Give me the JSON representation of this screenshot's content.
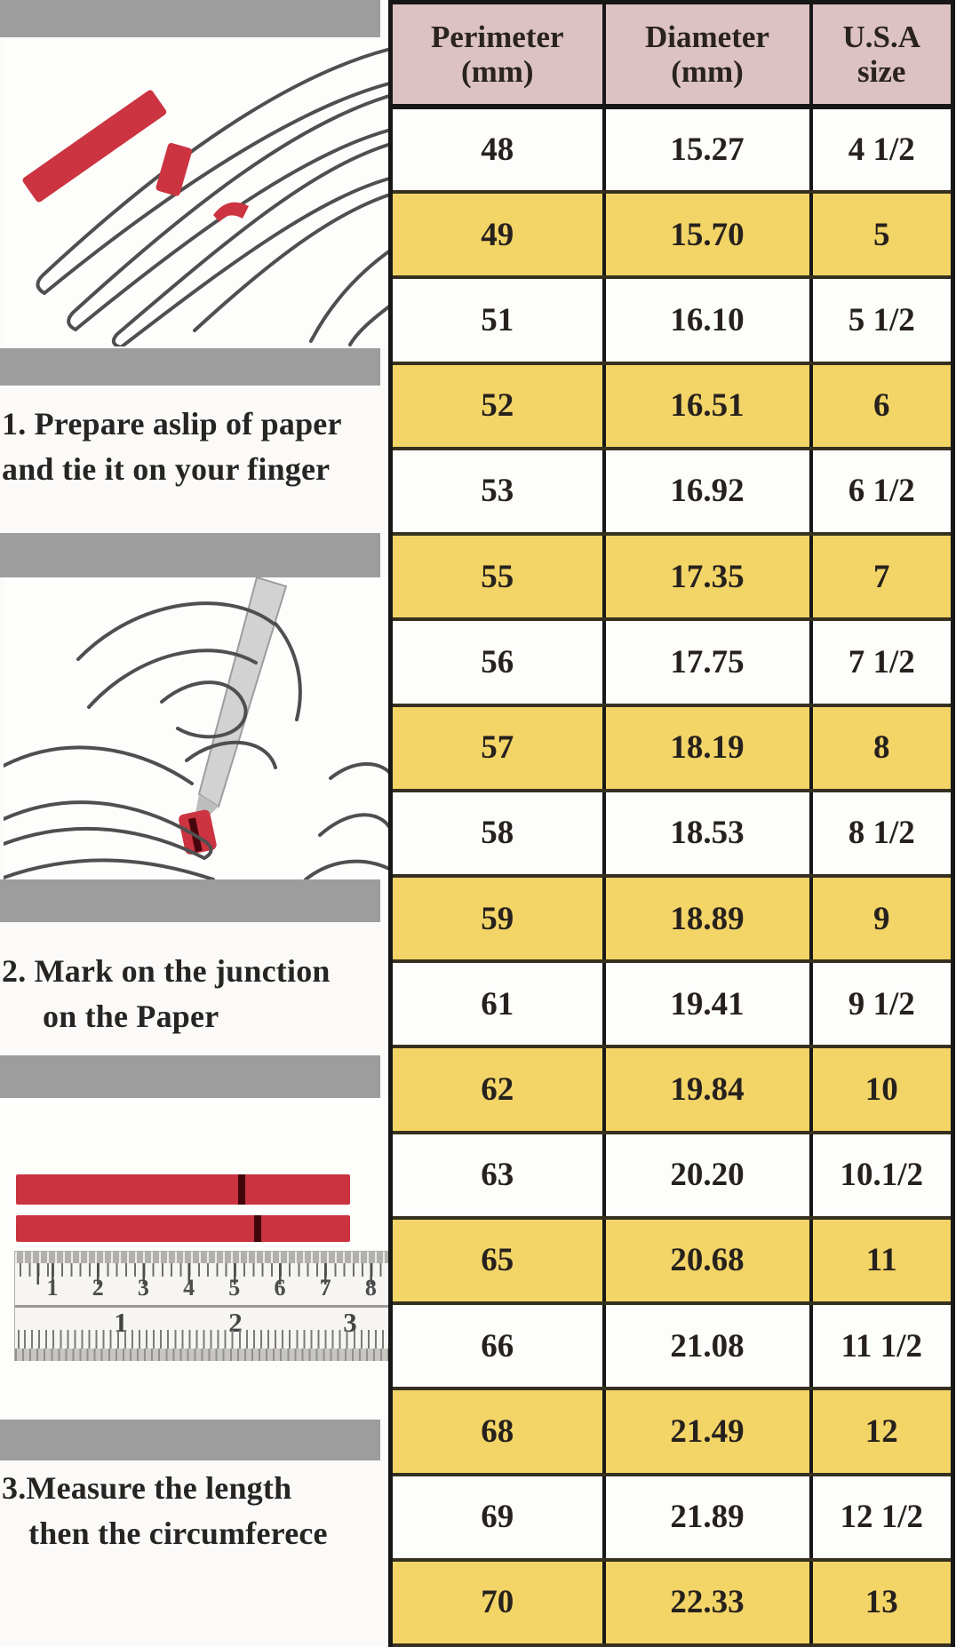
{
  "colors": {
    "header_bg": "#dcc2c3",
    "row_yellow": "#f3d467",
    "row_white": "#fdfdfc",
    "strip_red": "#cb3340",
    "strip_mark_dark": "#42050b",
    "separator_gray": "#9d9d9d",
    "table_border": "#171717"
  },
  "left_panel": {
    "illustrations": {
      "step1": "hand-with-red-paper-strip",
      "step2": "hands-marking-paper-on-finger",
      "step3": "red-strips-and-ruler"
    },
    "steps": [
      {
        "line1": "1.  Prepare aslip of paper",
        "line2": "and tie it on your finger"
      },
      {
        "line1": "2. Mark on the junction",
        "line2": "on the Paper"
      },
      {
        "line1": "3.Measure the length",
        "line2": "then the circumferece"
      }
    ],
    "ruler": {
      "cm_labels": [
        "1",
        "2",
        "3",
        "4",
        "5",
        "6",
        "7",
        "8"
      ],
      "inch_labels": [
        "1",
        "2",
        "3"
      ]
    }
  },
  "table": {
    "headers": [
      {
        "title": "Perimeter",
        "unit": "(mm)"
      },
      {
        "title": "Diameter",
        "unit": "(mm)"
      },
      {
        "title": "U.S.A",
        "unit": "size"
      }
    ],
    "rows": [
      {
        "perimeter": "48",
        "diameter": "15.27",
        "usa_size": "4 1/2",
        "highlighted": false
      },
      {
        "perimeter": "49",
        "diameter": "15.70",
        "usa_size": "5",
        "highlighted": true
      },
      {
        "perimeter": "51",
        "diameter": "16.10",
        "usa_size": "5 1/2",
        "highlighted": false
      },
      {
        "perimeter": "52",
        "diameter": "16.51",
        "usa_size": "6",
        "highlighted": true
      },
      {
        "perimeter": "53",
        "diameter": "16.92",
        "usa_size": "6 1/2",
        "highlighted": false
      },
      {
        "perimeter": "55",
        "diameter": "17.35",
        "usa_size": "7",
        "highlighted": true
      },
      {
        "perimeter": "56",
        "diameter": "17.75",
        "usa_size": "7 1/2",
        "highlighted": false
      },
      {
        "perimeter": "57",
        "diameter": "18.19",
        "usa_size": "8",
        "highlighted": true
      },
      {
        "perimeter": "58",
        "diameter": "18.53",
        "usa_size": "8 1/2",
        "highlighted": false
      },
      {
        "perimeter": "59",
        "diameter": "18.89",
        "usa_size": "9",
        "highlighted": true
      },
      {
        "perimeter": "61",
        "diameter": "19.41",
        "usa_size": "9 1/2",
        "highlighted": false
      },
      {
        "perimeter": "62",
        "diameter": "19.84",
        "usa_size": "10",
        "highlighted": true
      },
      {
        "perimeter": "63",
        "diameter": "20.20",
        "usa_size": "10.1/2",
        "highlighted": false
      },
      {
        "perimeter": "65",
        "diameter": "20.68",
        "usa_size": "11",
        "highlighted": true
      },
      {
        "perimeter": "66",
        "diameter": "21.08",
        "usa_size": "11 1/2",
        "highlighted": false
      },
      {
        "perimeter": "68",
        "diameter": "21.49",
        "usa_size": "12",
        "highlighted": true
      },
      {
        "perimeter": "69",
        "diameter": "21.89",
        "usa_size": "12 1/2",
        "highlighted": false
      },
      {
        "perimeter": "70",
        "diameter": "22.33",
        "usa_size": "13",
        "highlighted": true
      }
    ]
  },
  "chart_data": {
    "type": "table",
    "columns": [
      "Perimeter (mm)",
      "Diameter (mm)",
      "U.S.A size"
    ],
    "rows": [
      [
        48,
        15.27,
        "4 1/2"
      ],
      [
        49,
        15.7,
        "5"
      ],
      [
        51,
        16.1,
        "5 1/2"
      ],
      [
        52,
        16.51,
        "6"
      ],
      [
        53,
        16.92,
        "6 1/2"
      ],
      [
        55,
        17.35,
        "7"
      ],
      [
        56,
        17.75,
        "7 1/2"
      ],
      [
        57,
        18.19,
        "8"
      ],
      [
        58,
        18.53,
        "8 1/2"
      ],
      [
        59,
        18.89,
        "9"
      ],
      [
        61,
        19.41,
        "9 1/2"
      ],
      [
        62,
        19.84,
        "10"
      ],
      [
        63,
        20.2,
        "10.1/2"
      ],
      [
        65,
        20.68,
        "11"
      ],
      [
        66,
        21.08,
        "11 1/2"
      ],
      [
        68,
        21.49,
        "12"
      ],
      [
        69,
        21.89,
        "12 1/2"
      ],
      [
        70,
        22.33,
        "13"
      ]
    ],
    "layout_hints": {
      "alternating_highlight": "yellow on whole-size rows",
      "grid": true
    }
  }
}
